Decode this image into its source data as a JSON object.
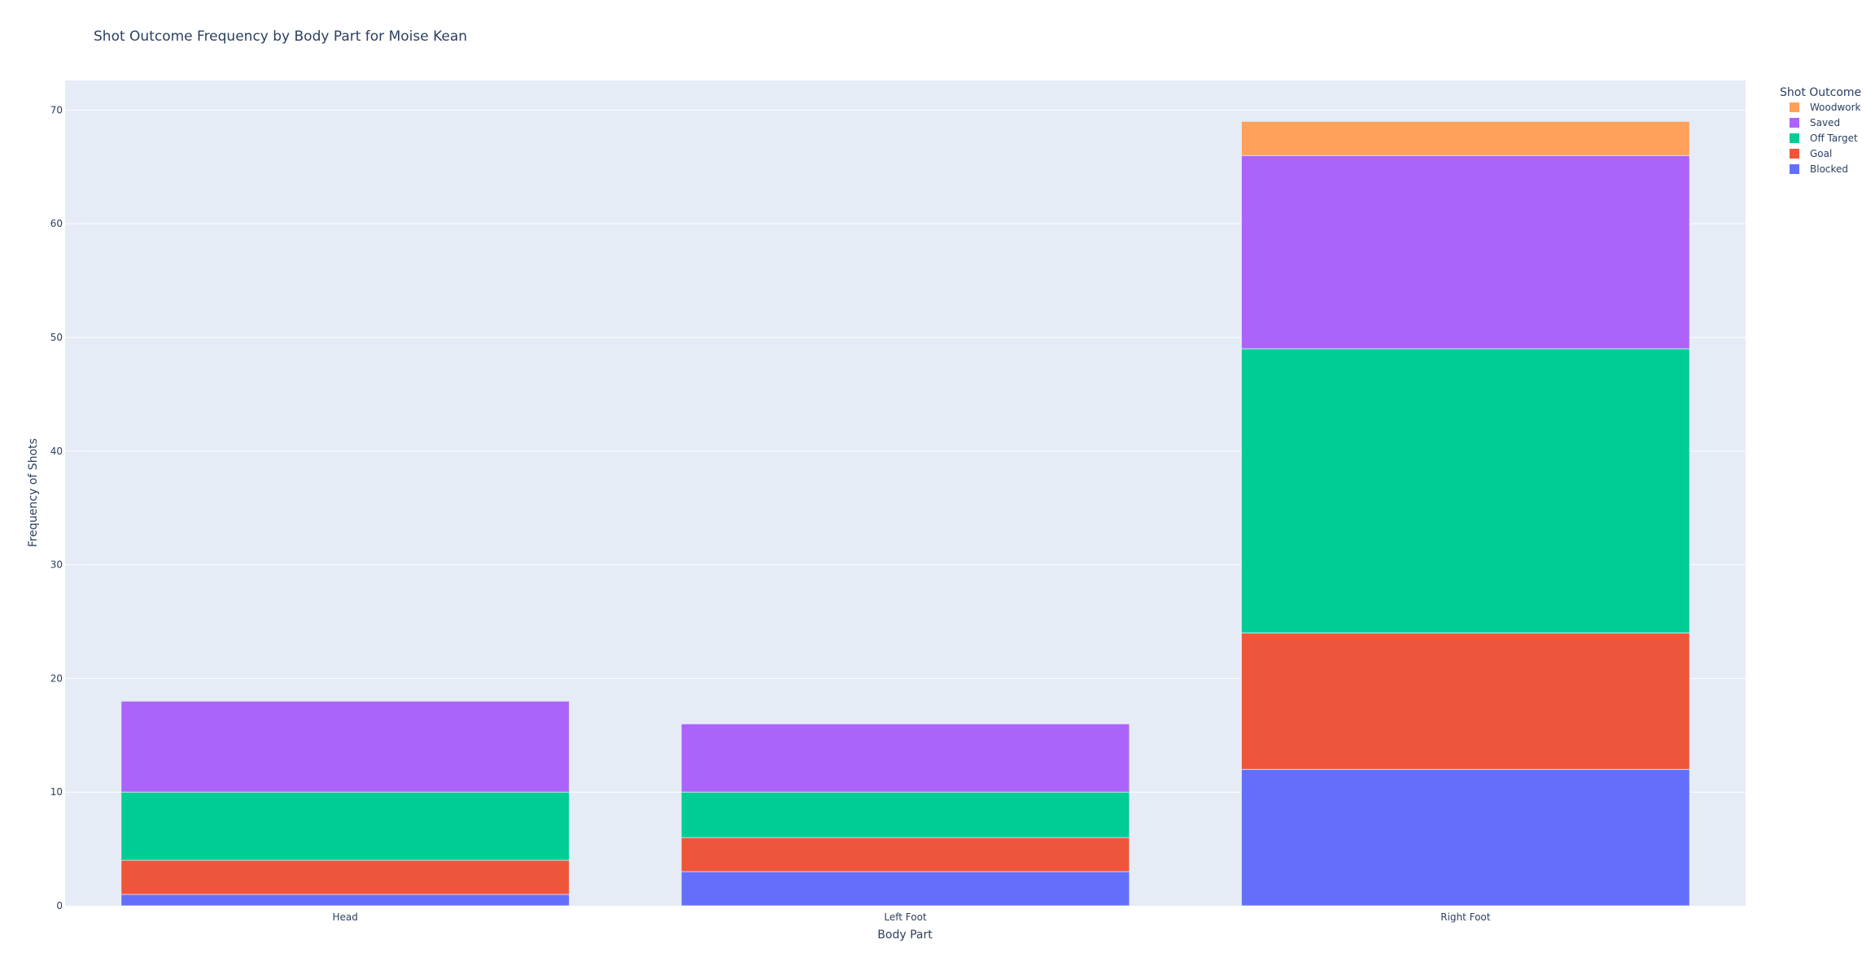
{
  "chart_data": {
    "type": "bar",
    "barmode": "stack",
    "title": "Shot Outcome Frequency by Body Part for Moise Kean",
    "xlabel": "Body Part",
    "ylabel": "Frequency of Shots",
    "categories": [
      "Head",
      "Left Foot",
      "Right Foot"
    ],
    "ylim": [
      0,
      72.6
    ],
    "yticks": [
      0,
      10,
      20,
      30,
      40,
      50,
      60,
      70
    ],
    "grid": true,
    "legend": {
      "title": "Shot Outcome",
      "placement": "top-right"
    },
    "series": [
      {
        "name": "Blocked",
        "color": "#636efa",
        "values": [
          1,
          3,
          12
        ]
      },
      {
        "name": "Goal",
        "color": "#ef553b",
        "values": [
          3,
          3,
          12
        ]
      },
      {
        "name": "Off Target",
        "color": "#00cc96",
        "values": [
          6,
          4,
          25
        ]
      },
      {
        "name": "Saved",
        "color": "#ab63fa",
        "values": [
          8,
          6,
          17
        ]
      },
      {
        "name": "Woodwork",
        "color": "#ffa15a",
        "values": [
          0,
          0,
          3
        ]
      }
    ],
    "plot_background": "#e5ecf6",
    "gridline_color": "#ffffff"
  }
}
